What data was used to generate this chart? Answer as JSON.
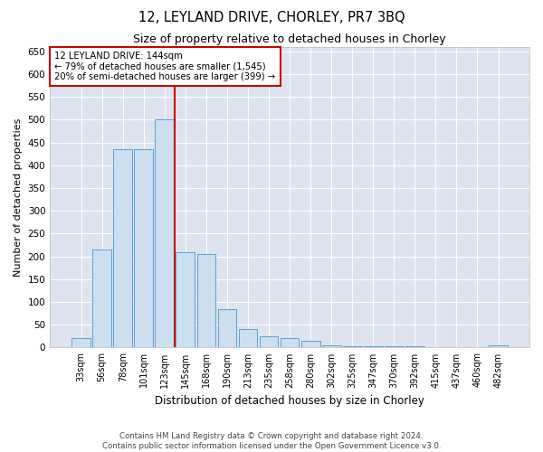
{
  "title1": "12, LEYLAND DRIVE, CHORLEY, PR7 3BQ",
  "title2": "Size of property relative to detached houses in Chorley",
  "xlabel": "Distribution of detached houses by size in Chorley",
  "ylabel": "Number of detached properties",
  "footer1": "Contains HM Land Registry data © Crown copyright and database right 2024.",
  "footer2": "Contains public sector information licensed under the Open Government Licence v3.0.",
  "annotation_line1": "12 LEYLAND DRIVE: 144sqm",
  "annotation_line2": "← 79% of detached houses are smaller (1,545)",
  "annotation_line3": "20% of semi-detached houses are larger (399) →",
  "bar_edge_color": "#5a9fd4",
  "bar_face_color": "#ccdff0",
  "vline_color": "#cc0000",
  "annotation_box_edge": "#cc0000",
  "background_color": "#ffffff",
  "plot_bg_color": "#dde4ef",
  "grid_color": "#ffffff",
  "categories": [
    "33sqm",
    "56sqm",
    "78sqm",
    "101sqm",
    "123sqm",
    "145sqm",
    "168sqm",
    "190sqm",
    "213sqm",
    "235sqm",
    "258sqm",
    "280sqm",
    "302sqm",
    "325sqm",
    "347sqm",
    "370sqm",
    "392sqm",
    "415sqm",
    "437sqm",
    "460sqm",
    "482sqm"
  ],
  "values": [
    20,
    215,
    435,
    435,
    500,
    210,
    205,
    85,
    40,
    25,
    20,
    15,
    5,
    2,
    2,
    2,
    2,
    0,
    0,
    0,
    5
  ],
  "vline_x": 4.5,
  "ylim": [
    0,
    660
  ],
  "yticks": [
    0,
    50,
    100,
    150,
    200,
    250,
    300,
    350,
    400,
    450,
    500,
    550,
    600,
    650
  ],
  "figsize": [
    6.0,
    5.0
  ],
  "dpi": 100
}
